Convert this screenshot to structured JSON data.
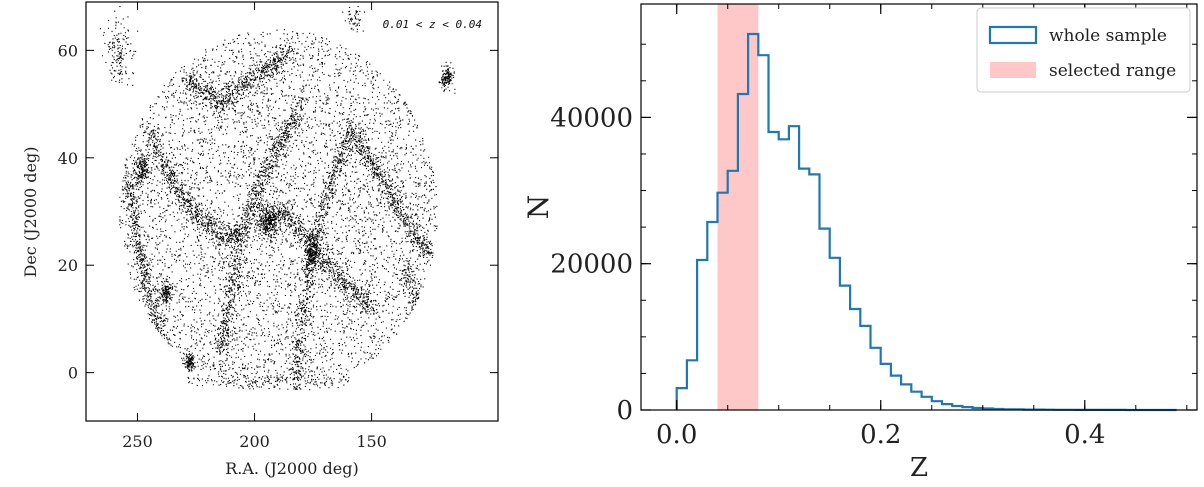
{
  "chart_data": [
    {
      "type": "scatter",
      "annotation": "0.01 < z < 0.04",
      "xlabel": "R.A. (J2000 deg)",
      "ylabel": "Dec (J2000 deg)",
      "xlim": [
        272,
        96
      ],
      "ylim": [
        -9,
        69
      ],
      "x_ticks": [
        250,
        200,
        150
      ],
      "y_ticks": [
        0,
        20,
        40,
        60
      ],
      "footprint": {
        "ra_center": 190,
        "dec_center": 30,
        "ra_halfwidth": 68,
        "dec_halfwidth": 34,
        "dec_min": -3
      },
      "filaments": [
        [
          [
            255,
            38
          ],
          [
            248,
            20
          ],
          [
            240,
            5
          ],
          [
            232,
            -2
          ]
        ],
        [
          [
            245,
            45
          ],
          [
            235,
            35
          ],
          [
            222,
            28
          ],
          [
            212,
            25
          ],
          [
            205,
            27
          ]
        ],
        [
          [
            205,
            27
          ],
          [
            198,
            35
          ],
          [
            190,
            42
          ],
          [
            180,
            50
          ]
        ],
        [
          [
            205,
            27
          ],
          [
            210,
            15
          ],
          [
            215,
            3
          ]
        ],
        [
          [
            200,
            28
          ],
          [
            188,
            30
          ],
          [
            175,
            24
          ],
          [
            165,
            18
          ],
          [
            150,
            12
          ]
        ],
        [
          [
            175,
            24
          ],
          [
            180,
            10
          ],
          [
            182,
            -2
          ]
        ],
        [
          [
            160,
            45
          ],
          [
            148,
            38
          ],
          [
            138,
            30
          ],
          [
            125,
            22
          ]
        ],
        [
          [
            140,
            55
          ],
          [
            132,
            50
          ],
          [
            122,
            52
          ],
          [
            112,
            58
          ]
        ],
        [
          [
            160,
            45
          ],
          [
            168,
            35
          ],
          [
            175,
            24
          ]
        ],
        [
          [
            230,
            55
          ],
          [
            215,
            50
          ],
          [
            200,
            55
          ],
          [
            185,
            60
          ]
        ],
        [
          [
            135,
            20
          ],
          [
            130,
            10
          ],
          [
            125,
            0
          ]
        ]
      ],
      "clusters": [
        {
          "ra": 194,
          "dec": 28,
          "size": 2.2
        },
        {
          "ra": 248,
          "dec": 38,
          "size": 1.6
        },
        {
          "ra": 176,
          "dec": 22,
          "size": 1.5
        },
        {
          "ra": 238,
          "dec": 15,
          "size": 1.2
        },
        {
          "ra": 118,
          "dec": 55,
          "size": 1.3
        },
        {
          "ra": 228,
          "dec": 2,
          "size": 1.2
        }
      ]
    },
    {
      "type": "histogram",
      "xlabel": "Z",
      "ylabel": "N",
      "xlim": [
        -0.035,
        0.51
      ],
      "ylim": [
        0,
        55500
      ],
      "x_ticks": [
        0.0,
        0.2,
        0.4
      ],
      "x_tick_labels": [
        "0.0",
        "0.2",
        "0.4"
      ],
      "y_ticks": [
        0,
        20000,
        40000
      ],
      "y_tick_labels": [
        "0",
        "20000",
        "40000"
      ],
      "bin_width": 0.01,
      "bin_start": 0.0,
      "series": [
        {
          "name": "whole sample",
          "color": "#1f77b4",
          "values": [
            3000,
            6800,
            20500,
            25700,
            29700,
            32700,
            43200,
            51400,
            48500,
            38000,
            37000,
            38800,
            33000,
            32200,
            24800,
            20800,
            17000,
            13800,
            11500,
            8500,
            6300,
            4700,
            3500,
            2500,
            1800,
            1200,
            800,
            550,
            400,
            280,
            200,
            140,
            100,
            80,
            60,
            50,
            40,
            30,
            25,
            20,
            15,
            12,
            10,
            8,
            6,
            5,
            4,
            3,
            2
          ]
        }
      ],
      "selected_range": {
        "name": "selected range",
        "from": 0.04,
        "to": 0.08,
        "color": "#ff9a9a"
      },
      "legend": "top-right"
    }
  ]
}
